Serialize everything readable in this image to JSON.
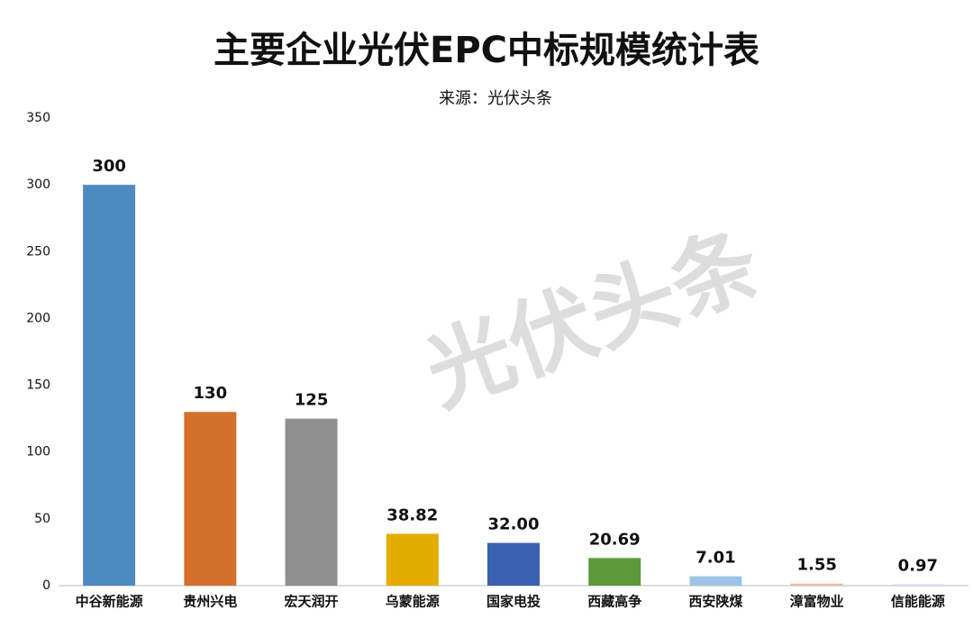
{
  "chart_data": {
    "type": "bar",
    "title": "主要企业光伏EPC中标规模统计表",
    "subtitle": "来源：光伏头条",
    "watermark": "光伏头条",
    "categories": [
      "中谷新能源",
      "贵州兴电",
      "宏天润开",
      "乌蒙能源",
      "国家电投",
      "西藏高争",
      "西安陕煤",
      "漳富物业",
      "信能能源"
    ],
    "values": [
      300,
      130,
      125,
      38.82,
      32,
      20.69,
      7.01,
      1.55,
      0.97
    ],
    "value_labels": [
      "300",
      "130",
      "125",
      "38.82",
      "32.00",
      "20.69",
      "7.01",
      "1.55",
      "0.97"
    ],
    "colors": [
      "#4e8ac2",
      "#d4702c",
      "#8f8f8f",
      "#e5ac00",
      "#3a62ae",
      "#5c9a3c",
      "#9dc3e6",
      "#f4b8a8",
      "#c9dcef"
    ],
    "ylim": [
      0,
      350
    ],
    "yticks": [
      0,
      50,
      100,
      150,
      200,
      250,
      300,
      350
    ],
    "grid": false
  }
}
